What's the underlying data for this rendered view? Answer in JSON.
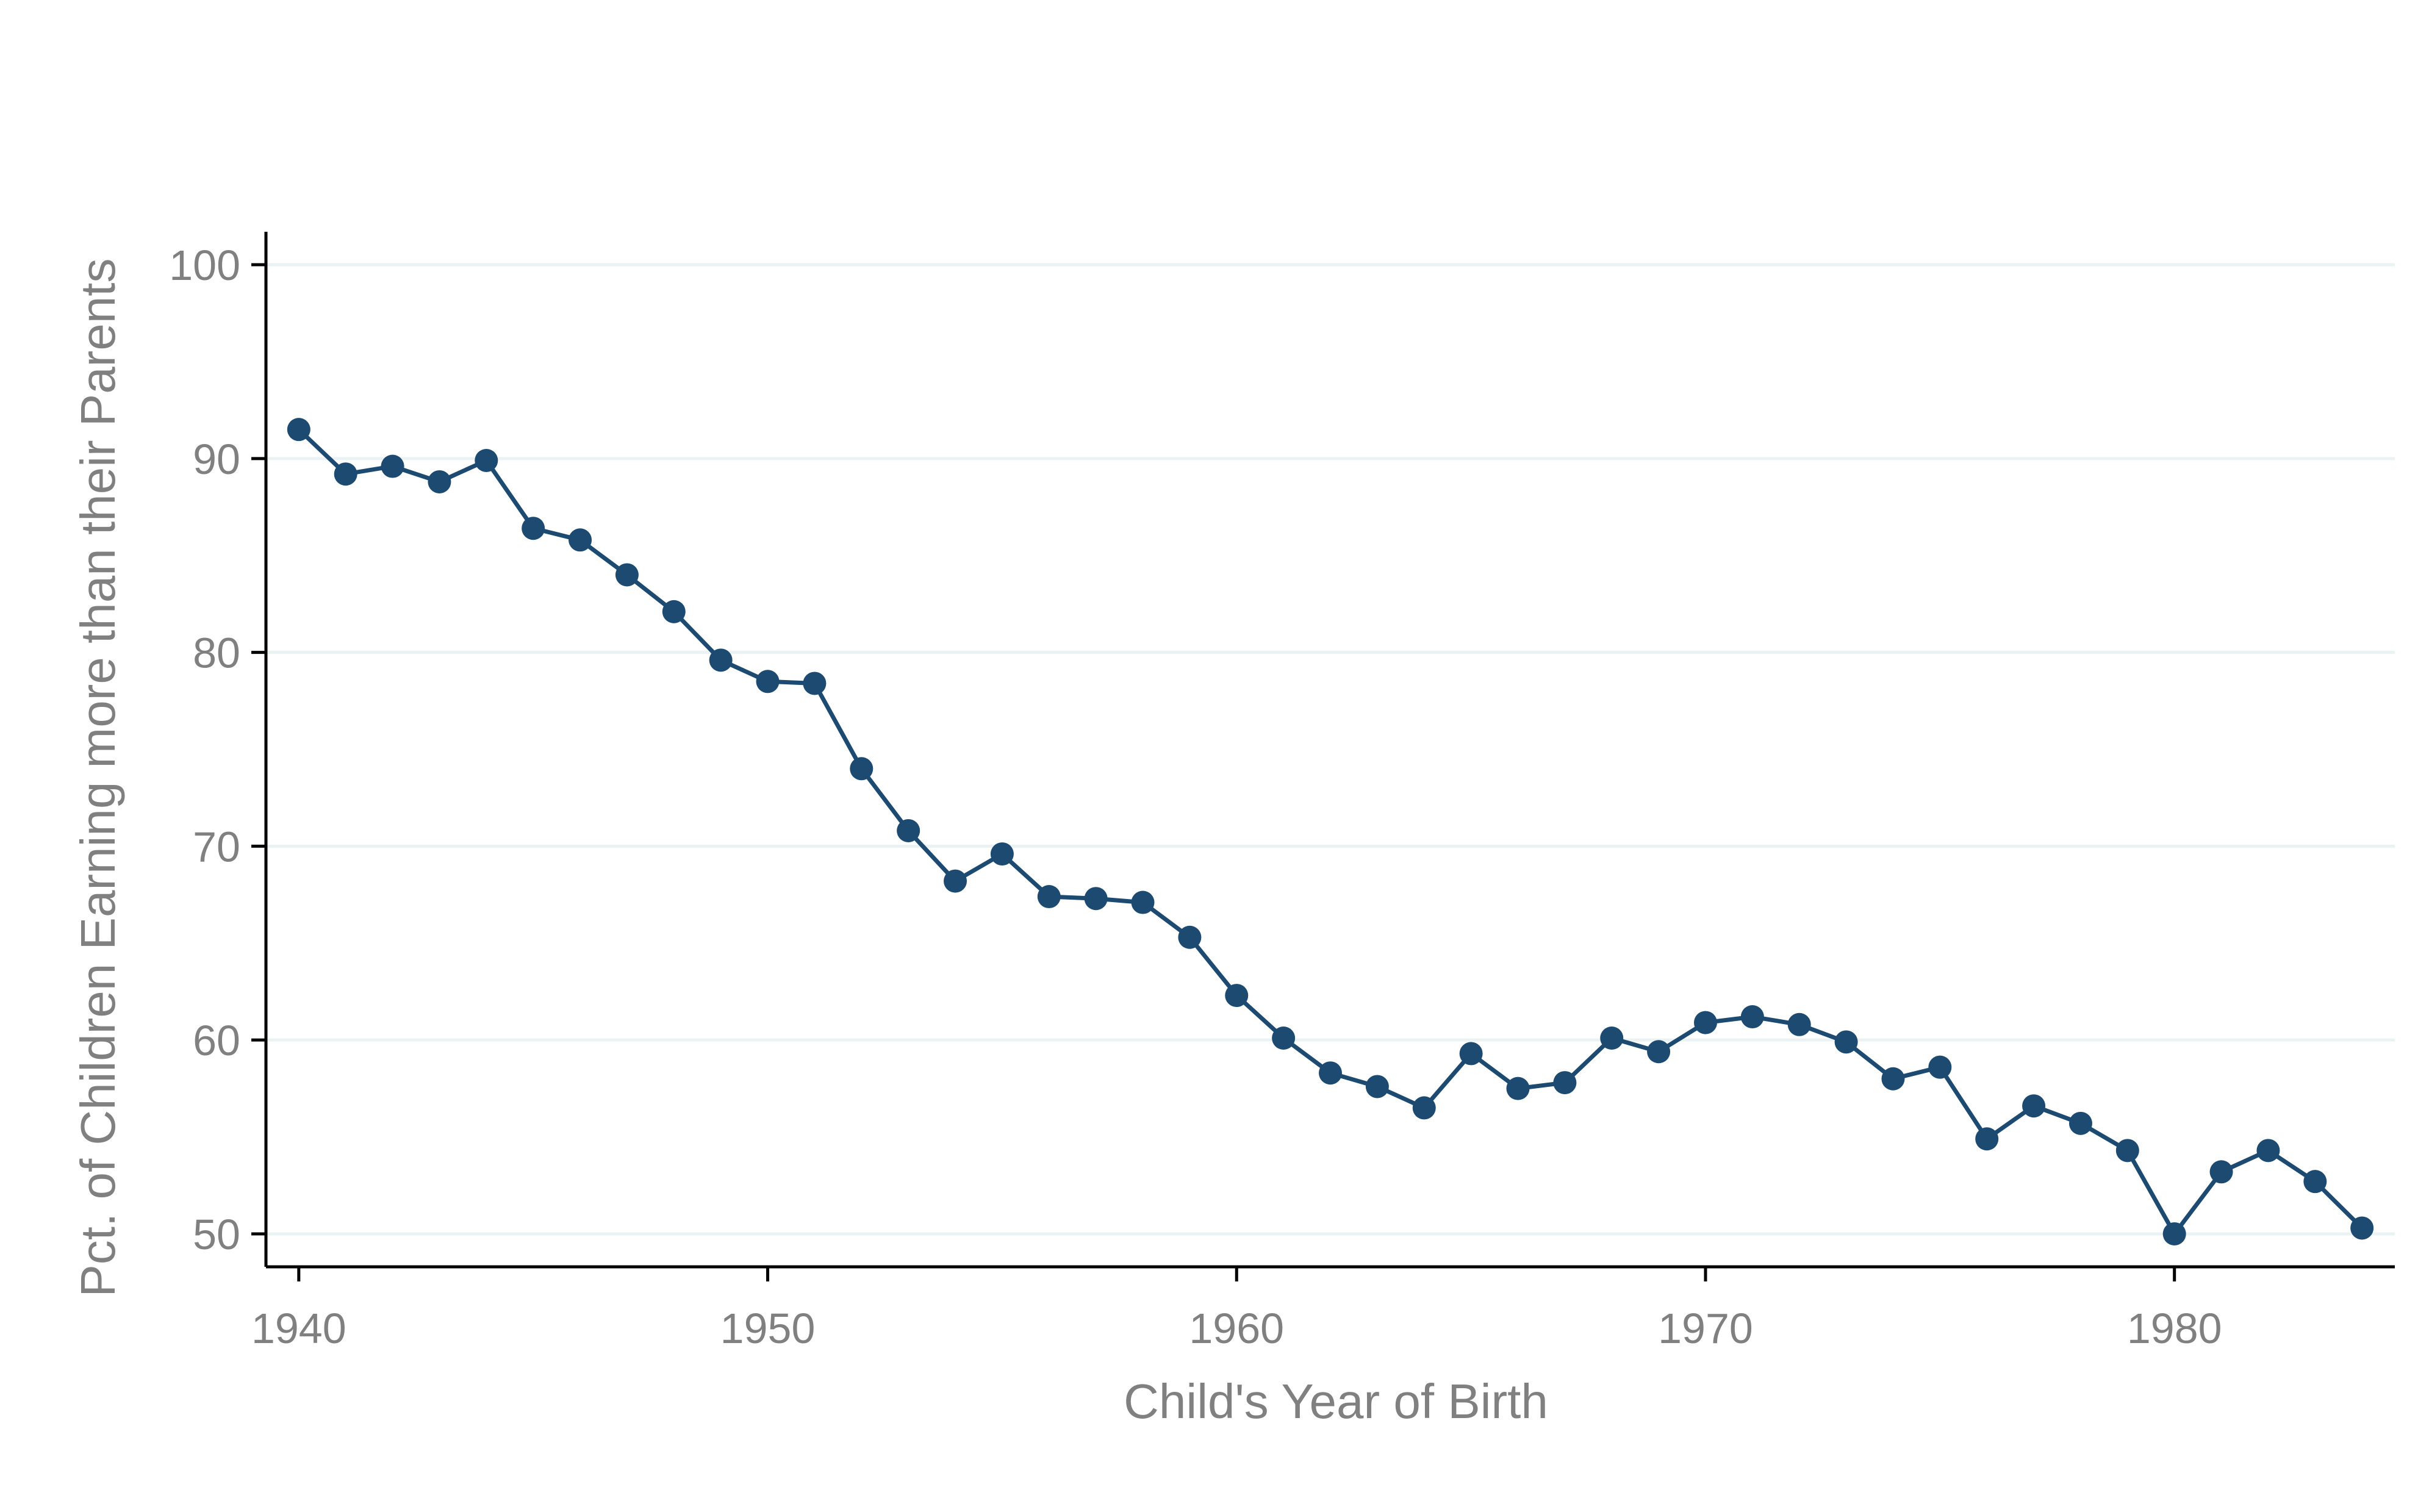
{
  "chart_data": {
    "type": "line",
    "title": "",
    "xlabel": "Child's Year of Birth",
    "ylabel": "Pct. of Children Earning more than their Parents",
    "xlim": [
      1939.3,
      1984.7
    ],
    "ylim": [
      48.3,
      101.7
    ],
    "xticks": [
      1940,
      1950,
      1960,
      1970,
      1980
    ],
    "yticks": [
      50,
      60,
      70,
      80,
      90,
      100
    ],
    "grid": "horizontal",
    "legend": "none",
    "series": [
      {
        "color": "#1c4a71",
        "marker": "circle",
        "x": [
          1940,
          1941,
          1942,
          1943,
          1944,
          1945,
          1946,
          1947,
          1948,
          1949,
          1950,
          1951,
          1952,
          1953,
          1954,
          1955,
          1956,
          1957,
          1958,
          1959,
          1960,
          1961,
          1962,
          1963,
          1964,
          1965,
          1966,
          1967,
          1968,
          1969,
          1970,
          1971,
          1972,
          1973,
          1974,
          1975,
          1976,
          1977,
          1978,
          1979,
          1980,
          1981,
          1982,
          1983,
          1984
        ],
        "values": [
          91.5,
          89.2,
          89.6,
          88.8,
          89.9,
          86.4,
          85.8,
          84.0,
          82.1,
          79.6,
          78.5,
          78.4,
          74.0,
          70.8,
          68.2,
          69.6,
          67.4,
          67.3,
          67.1,
          65.3,
          62.3,
          60.1,
          58.3,
          57.6,
          56.5,
          59.3,
          57.5,
          57.8,
          60.1,
          59.4,
          60.9,
          61.2,
          60.8,
          59.9,
          58.0,
          58.6,
          54.9,
          56.6,
          55.7,
          54.3,
          50.0,
          53.2,
          54.3,
          52.7,
          50.3
        ]
      }
    ]
  }
}
